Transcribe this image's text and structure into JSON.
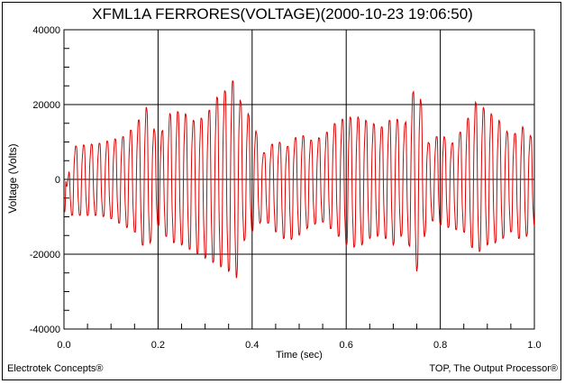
{
  "chart_data": {
    "type": "line",
    "title": "XFML1A FERRORES(VOLTAGE)(2000-10-23 19:06:50)",
    "xlabel": "Time (sec)",
    "ylabel": "Voltage (Volts)",
    "xlim": [
      0,
      1.0
    ],
    "ylim": [
      -40000,
      40000
    ],
    "xticks": [
      "0.0",
      "0.2",
      "0.4",
      "0.6",
      "0.8",
      "1.0"
    ],
    "yticks": [
      "40000",
      "20000",
      "0",
      "-20000",
      "-40000"
    ],
    "grid": true,
    "line_color": "#e00000",
    "series": [
      {
        "x": [
          0.0,
          0.017,
          0.042,
          0.075,
          0.1,
          0.125,
          0.15,
          0.175,
          0.2,
          0.225,
          0.25,
          0.275,
          0.3,
          0.325,
          0.35,
          0.367,
          0.375,
          0.4,
          0.425,
          0.45,
          0.475,
          0.5,
          0.525,
          0.55,
          0.575,
          0.6,
          0.625,
          0.65,
          0.675,
          0.7,
          0.725,
          0.75,
          0.775,
          0.8,
          0.825,
          0.85,
          0.875,
          0.9,
          0.925,
          0.95,
          0.975,
          1.0
        ],
        "y": [
          -10000,
          10000,
          10500,
          11000,
          12000,
          13000,
          16000,
          22000,
          12000,
          20000,
          21000,
          18000,
          19000,
          25000,
          28000,
          32000,
          24000,
          18000,
          8000,
          12000,
          10000,
          14000,
          12000,
          13000,
          17000,
          19000,
          19000,
          17500,
          16000,
          19000,
          17000,
          31000,
          11000,
          14000,
          11000,
          16000,
          23500,
          21000,
          18000,
          13000,
          16000,
          12000
        ]
      },
      {
        "x": [
          0.0,
          0.017,
          0.042,
          0.075,
          0.1,
          0.125,
          0.15,
          0.175,
          0.2,
          0.225,
          0.25,
          0.275,
          0.3,
          0.325,
          0.35,
          0.367,
          0.375,
          0.4,
          0.425,
          0.45,
          0.475,
          0.5,
          0.525,
          0.55,
          0.575,
          0.6,
          0.625,
          0.65,
          0.675,
          0.7,
          0.725,
          0.75,
          0.775,
          0.8,
          0.825,
          0.85,
          0.875,
          0.9,
          0.925,
          0.95,
          0.975,
          1.0
        ],
        "y": [
          -10000,
          -11000,
          -11000,
          -11000,
          -12000,
          -14000,
          -16000,
          -22000,
          -14000,
          -19000,
          -20000,
          -22000,
          -24000,
          -26000,
          -28000,
          -30000,
          -20000,
          -16000,
          -12000,
          -16000,
          -19000,
          -17000,
          -14000,
          -13000,
          -16000,
          -20000,
          -21000,
          -18000,
          -17000,
          -20000,
          -16000,
          -28000,
          -12000,
          -14000,
          -15000,
          -16000,
          -23000,
          -20000,
          -19000,
          -16000,
          -19000,
          -14000
        ]
      }
    ]
  },
  "footer": {
    "left": "Electrotek Concepts®",
    "right": "TOP, The Output Processor®"
  }
}
